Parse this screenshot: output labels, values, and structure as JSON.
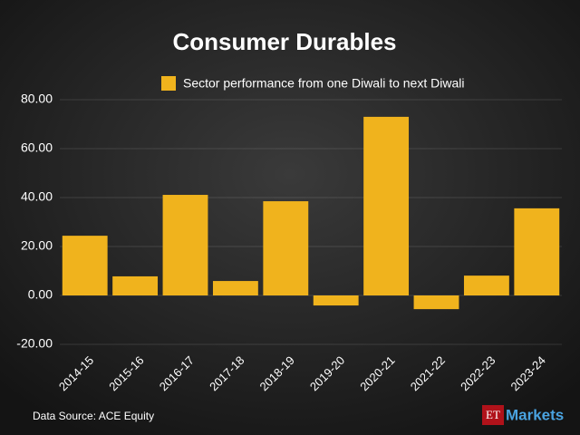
{
  "chart_data": {
    "type": "bar",
    "title": "Consumer Durables",
    "legend_label": "Sector performance from one Diwali to next Diwali",
    "categories": [
      "2014-15",
      "2015-16",
      "2016-17",
      "2017-18",
      "2018-19",
      "2019-20",
      "2020-21",
      "2021-22",
      "2022-23",
      "2023-24"
    ],
    "values": [
      24.4,
      7.8,
      41.1,
      5.9,
      38.5,
      -4.1,
      73.0,
      -5.6,
      8.1,
      35.6
    ],
    "color": "#f0b31d",
    "ylim": [
      -20,
      80
    ],
    "yticks": [
      {
        "value": -20,
        "label": "-20.00"
      },
      {
        "value": 0,
        "label": "0.00"
      },
      {
        "value": 20,
        "label": "20.00"
      },
      {
        "value": 40,
        "label": "40.00"
      },
      {
        "value": 60,
        "label": "60.00"
      },
      {
        "value": 80,
        "label": "80.00"
      }
    ],
    "grid": true,
    "source": "Data Source: ACE Equity",
    "logo": {
      "prefix": "ET",
      "name": "Markets"
    }
  }
}
